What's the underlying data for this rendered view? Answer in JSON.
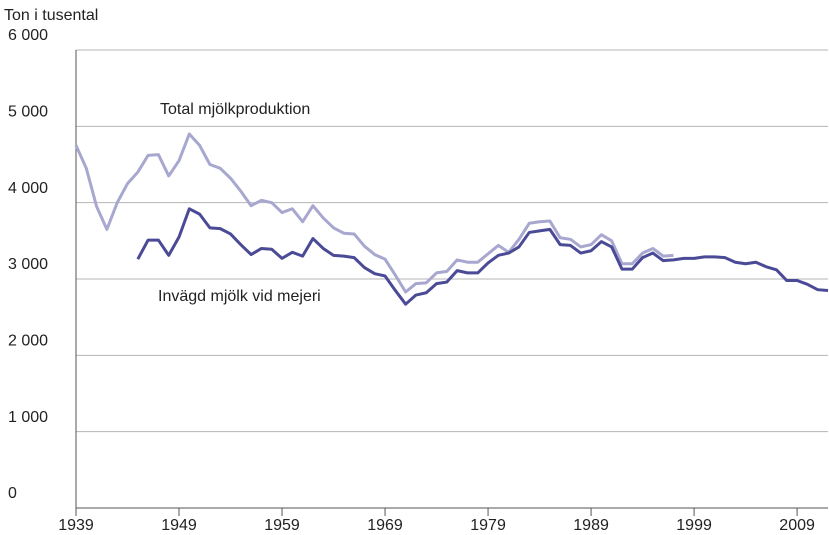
{
  "chart_data": {
    "type": "line",
    "y_axis_label": "Ton i tusental",
    "annotations": [
      "Total mjölkproduktion",
      "Invägd mjölk vid mejeri"
    ],
    "x": [
      1939,
      1940,
      1941,
      1942,
      1943,
      1944,
      1945,
      1946,
      1947,
      1948,
      1949,
      1950,
      1951,
      1952,
      1953,
      1954,
      1955,
      1956,
      1957,
      1958,
      1959,
      1960,
      1961,
      1962,
      1963,
      1964,
      1965,
      1966,
      1967,
      1968,
      1969,
      1970,
      1971,
      1972,
      1973,
      1974,
      1975,
      1976,
      1977,
      1978,
      1979,
      1980,
      1981,
      1982,
      1983,
      1984,
      1985,
      1986,
      1987,
      1988,
      1989,
      1990,
      1991,
      1992,
      1993,
      1994,
      1995,
      1996,
      1997,
      1998,
      1999,
      2000,
      2001,
      2002,
      2003,
      2004,
      2005,
      2006,
      2007,
      2008,
      2009,
      2010,
      2011,
      2012
    ],
    "series": [
      {
        "name": "Total mjölkproduktion",
        "color": "#a7a7cf",
        "values": [
          4750,
          4450,
          3950,
          3650,
          4000,
          4250,
          4400,
          4620,
          4630,
          4350,
          4550,
          4900,
          4750,
          4500,
          4450,
          4320,
          4150,
          3960,
          4030,
          4000,
          3870,
          3920,
          3750,
          3960,
          3800,
          3670,
          3600,
          3590,
          3430,
          3320,
          3260,
          3050,
          2830,
          2940,
          2950,
          3080,
          3100,
          3250,
          3220,
          3220,
          3330,
          3440,
          3350,
          3520,
          3730,
          3750,
          3760,
          3540,
          3520,
          3420,
          3450,
          3580,
          3500,
          3200,
          3200,
          3340,
          3400,
          3300,
          3310,
          null,
          null,
          null,
          null,
          null,
          null,
          null,
          null,
          null,
          null,
          null,
          null,
          null,
          null,
          null
        ]
      },
      {
        "name": "Invägd mjölk vid mejeri",
        "color": "#4b4a96",
        "values": [
          null,
          null,
          null,
          null,
          null,
          null,
          3260,
          3510,
          3510,
          3310,
          3550,
          3920,
          3850,
          3670,
          3660,
          3590,
          3450,
          3320,
          3400,
          3390,
          3270,
          3350,
          3300,
          3530,
          3400,
          3310,
          3300,
          3280,
          3150,
          3070,
          3040,
          2850,
          2670,
          2790,
          2820,
          2940,
          2960,
          3110,
          3080,
          3080,
          3210,
          3310,
          3340,
          3420,
          3610,
          3630,
          3650,
          3450,
          3440,
          3340,
          3370,
          3490,
          3420,
          3130,
          3130,
          3280,
          3340,
          3240,
          3250,
          3270,
          3270,
          3290,
          3290,
          3280,
          3220,
          3200,
          3220,
          3160,
          3120,
          2980,
          2980,
          2930,
          2860,
          2850
        ]
      }
    ],
    "xlim": [
      1939,
      2012
    ],
    "xticks": [
      1939,
      1949,
      1959,
      1969,
      1979,
      1989,
      1999,
      2009
    ],
    "ylim": [
      0,
      6000
    ],
    "yticks": [
      0,
      {
        "value": 1000,
        "label": "1 000"
      },
      {
        "value": 2000,
        "label": "2 000"
      },
      {
        "value": 3000,
        "label": "3 000"
      },
      {
        "value": 4000,
        "label": "4 000"
      },
      {
        "value": 5000,
        "label": "5 000"
      },
      {
        "value": 6000,
        "label": "6 000"
      }
    ],
    "grid": true
  }
}
